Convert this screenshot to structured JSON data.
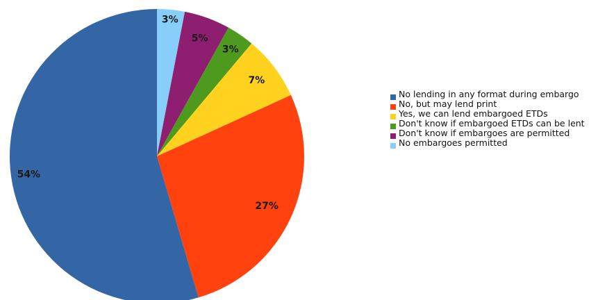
{
  "chart_data": {
    "type": "pie",
    "title": "",
    "start_angle_deg": 0,
    "direction": "clockwise",
    "legend_position": "right",
    "slices": [
      {
        "label": "No embargoes permitted",
        "value": 3,
        "value_label": "3%",
        "color": "#87CEFA"
      },
      {
        "label": "Don't know if embargoes are permitted",
        "value": 5,
        "value_label": "5%",
        "color": "#8E1F70"
      },
      {
        "label": "Don't know if embargoed ETDs can be lent",
        "value": 3,
        "value_label": "3%",
        "color": "#4E9A1E"
      },
      {
        "label": "Yes, we can lend embargoed ETDs",
        "value": 7,
        "value_label": "7%",
        "color": "#FFD21F"
      },
      {
        "label": "No, but may lend print",
        "value": 27,
        "value_label": "27%",
        "color": "#FF420E"
      },
      {
        "label": "No lending in any format during embargo",
        "value": 54,
        "value_label": "54%",
        "color": "#3465A4"
      }
    ],
    "legend": [
      {
        "label": "No lending in any format during embargo",
        "color": "#3465A4"
      },
      {
        "label": "No, but may lend print",
        "color": "#FF420E"
      },
      {
        "label": "Yes, we can lend embargoed ETDs",
        "color": "#FFD21F"
      },
      {
        "label": "Don't know if embargoed ETDs can be lent",
        "color": "#4E9A1E"
      },
      {
        "label": "Don't know if embargoes are permitted",
        "color": "#8E1F70"
      },
      {
        "label": "No embargoes permitted",
        "color": "#87CEFA"
      }
    ]
  }
}
